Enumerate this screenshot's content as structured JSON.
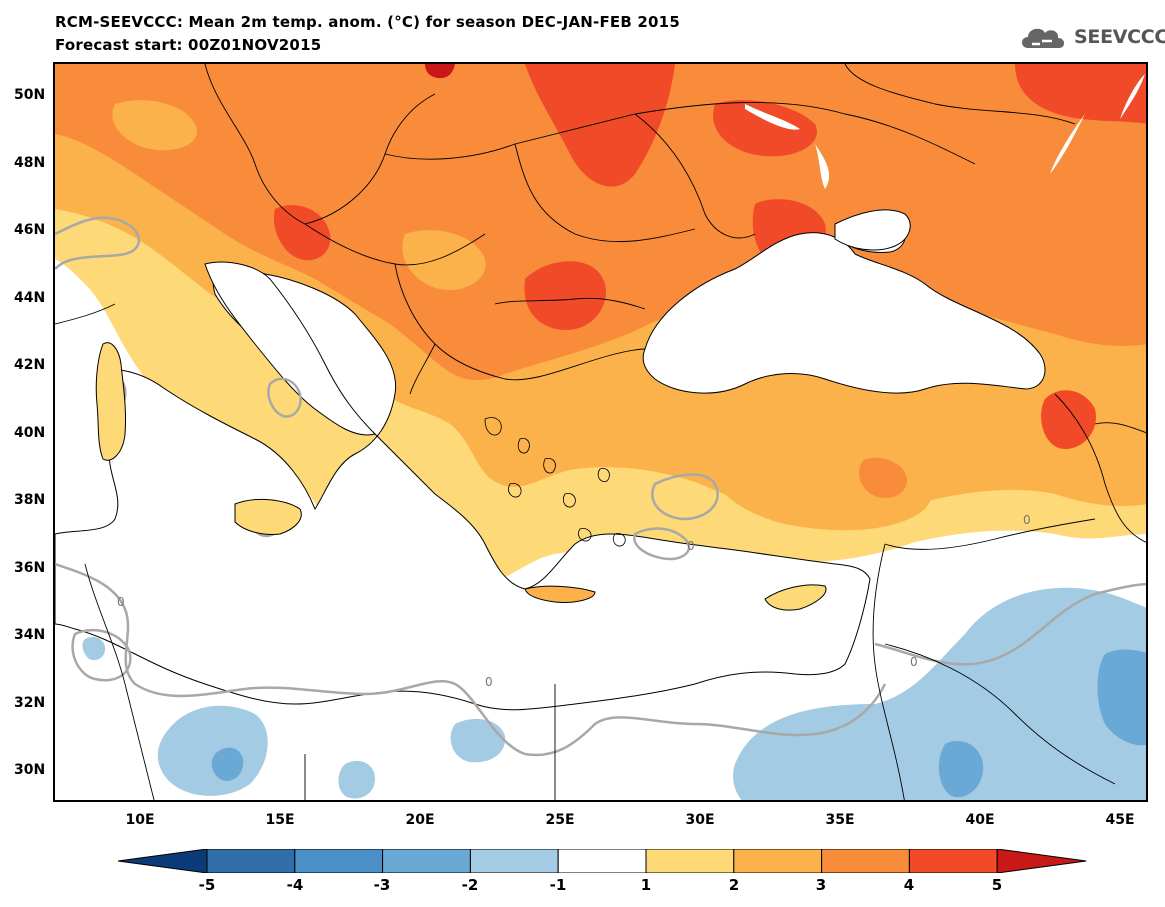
{
  "header": {
    "title_line1": "RCM-SEEVCCC: Mean 2m temp. anom. (°C) for season DEC-JAN-FEB 2015",
    "title_line2": "Forecast start: 00Z01NOV2015",
    "logo_text": "SEEVCCC"
  },
  "map": {
    "region": "South-East Europe / Eastern Mediterranean",
    "lat_labels": [
      "50N",
      "48N",
      "46N",
      "44N",
      "42N",
      "40N",
      "38N",
      "36N",
      "34N",
      "32N",
      "30N"
    ],
    "lon_labels": [
      "10E",
      "15E",
      "20E",
      "25E",
      "30E",
      "35E",
      "40E",
      "45E"
    ],
    "contour_label": "0",
    "colors": {
      "land_line": "#000000",
      "zero_contour": "#a8a8a8",
      "sea": "#ffffff"
    }
  },
  "colorbar": {
    "labels": [
      "-5",
      "-4",
      "-3",
      "-2",
      "-1",
      "1",
      "2",
      "3",
      "4",
      "5"
    ],
    "colors": [
      "#0a3a78",
      "#2f6ea8",
      "#4a8fc7",
      "#6aa8d6",
      "#a4cbe4",
      "#ffffff",
      "#fdd978",
      "#fcb24a",
      "#f88c3a",
      "#f04a28",
      "#c81818"
    ],
    "units": "°C"
  }
}
